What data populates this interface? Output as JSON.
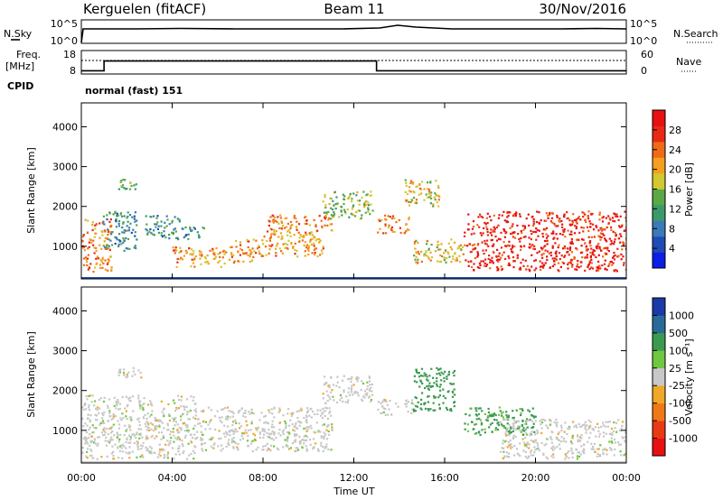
{
  "header": {
    "station": "Kerguelen (fitACF)",
    "beam": "Beam 11",
    "date": "30/Nov/2016"
  },
  "sky_panel": {
    "left_label": "N.Sky",
    "right_label": "N.Search",
    "left_ticks": [
      "10^5",
      "10^0"
    ],
    "right_ticks": [
      "10^5",
      "10^0"
    ]
  },
  "freq_panel": {
    "left_label_line1": "Freq.",
    "left_label_line2": "[MHz]",
    "left_ticks": [
      "18",
      "8"
    ],
    "right_label": "Nave",
    "right_ticks": [
      "60",
      "0"
    ],
    "cpid_label": "CPID",
    "mode_text": "normal (fast) 151",
    "freq_step": [
      {
        "t": 0,
        "v": 10
      },
      {
        "t": 1.0,
        "v": 16
      },
      {
        "t": 13.0,
        "v": 10
      },
      {
        "t": 24,
        "v": 10
      }
    ],
    "nave_level": 13
  },
  "x_axis": {
    "label": "Time UT",
    "ticks": [
      "00:00",
      "04:00",
      "08:00",
      "12:00",
      "16:00",
      "20:00",
      "00:00"
    ],
    "range_hours": [
      0,
      24
    ]
  },
  "y_axis": {
    "label": "Slant Range [km]",
    "ticks": [
      "1000",
      "2000",
      "3000",
      "4000"
    ],
    "range_km": [
      180,
      4600
    ]
  },
  "power_scale": {
    "label": "Power [dB]",
    "ticks": [
      "4",
      "8",
      "12",
      "16",
      "20",
      "24",
      "28"
    ],
    "colors": [
      "#0a1ee6",
      "#1e4cb4",
      "#3a7ab8",
      "#3c9a6a",
      "#5aa846",
      "#d2c832",
      "#f4a01e",
      "#f06a16",
      "#e82a14",
      "#e81010"
    ]
  },
  "velocity_scale": {
    "label": "Velocity [m s⁻¹]",
    "ticks": [
      "1000",
      "500",
      "100",
      "25",
      "-25",
      "-100",
      "-500",
      "-1000"
    ],
    "colors": [
      "#1a3aa8",
      "#2a6a98",
      "#3c9a50",
      "#70c840",
      "#c8c8c8",
      "#f0a828",
      "#f07818",
      "#e83a14",
      "#e81010"
    ]
  },
  "chart_data": {
    "type": "heatmap",
    "x_unit": "hours UT",
    "y_unit": "km",
    "power_regions": [
      {
        "t0": 0.0,
        "t1": 1.3,
        "r0": 380,
        "r1": 1700,
        "v": 22
      },
      {
        "t0": 0.9,
        "t1": 2.4,
        "r0": 900,
        "r1": 1900,
        "v": 10
      },
      {
        "t0": 1.6,
        "t1": 2.4,
        "r0": 2450,
        "r1": 2700,
        "v": 14
      },
      {
        "t0": 2.8,
        "t1": 4.3,
        "r0": 1200,
        "r1": 1800,
        "v": 10
      },
      {
        "t0": 4.4,
        "t1": 5.4,
        "r0": 1200,
        "r1": 1500,
        "v": 9
      },
      {
        "t0": 4.0,
        "t1": 6.5,
        "r0": 500,
        "r1": 1000,
        "v": 20
      },
      {
        "t0": 6.5,
        "t1": 8.0,
        "r0": 600,
        "r1": 1200,
        "v": 21
      },
      {
        "t0": 8.0,
        "t1": 10.7,
        "r0": 750,
        "r1": 1400,
        "v": 20
      },
      {
        "t0": 8.0,
        "t1": 11.0,
        "r0": 1400,
        "r1": 1800,
        "v": 22
      },
      {
        "t0": 10.6,
        "t1": 12.8,
        "r0": 1700,
        "r1": 2400,
        "v": 14
      },
      {
        "t0": 13.0,
        "t1": 14.4,
        "r0": 1350,
        "r1": 1800,
        "v": 22
      },
      {
        "t0": 14.2,
        "t1": 15.8,
        "r0": 2000,
        "r1": 2700,
        "v": 18
      },
      {
        "t0": 14.6,
        "t1": 16.8,
        "r0": 600,
        "r1": 1200,
        "v": 18
      },
      {
        "t0": 16.8,
        "t1": 24.0,
        "r0": 400,
        "r1": 1900,
        "v": 27
      }
    ],
    "velocity_regions": [
      {
        "t0": 0.0,
        "t1": 5.0,
        "r0": 300,
        "r1": 1900,
        "v": 0
      },
      {
        "t0": 1.6,
        "t1": 2.6,
        "r0": 2350,
        "r1": 2600,
        "v": 0
      },
      {
        "t0": 5.0,
        "t1": 11.0,
        "r0": 500,
        "r1": 1600,
        "v": 0
      },
      {
        "t0": 10.6,
        "t1": 12.8,
        "r0": 1700,
        "r1": 2400,
        "v": 0
      },
      {
        "t0": 13.0,
        "t1": 14.6,
        "r0": 1400,
        "r1": 1800,
        "v": 0
      },
      {
        "t0": 14.6,
        "t1": 16.4,
        "r0": 1500,
        "r1": 2600,
        "v": 120
      },
      {
        "t0": 16.8,
        "t1": 20.0,
        "r0": 900,
        "r1": 1600,
        "v": 80
      },
      {
        "t0": 18.4,
        "t1": 24.0,
        "r0": 300,
        "r1": 1300,
        "v": 0
      }
    ]
  }
}
